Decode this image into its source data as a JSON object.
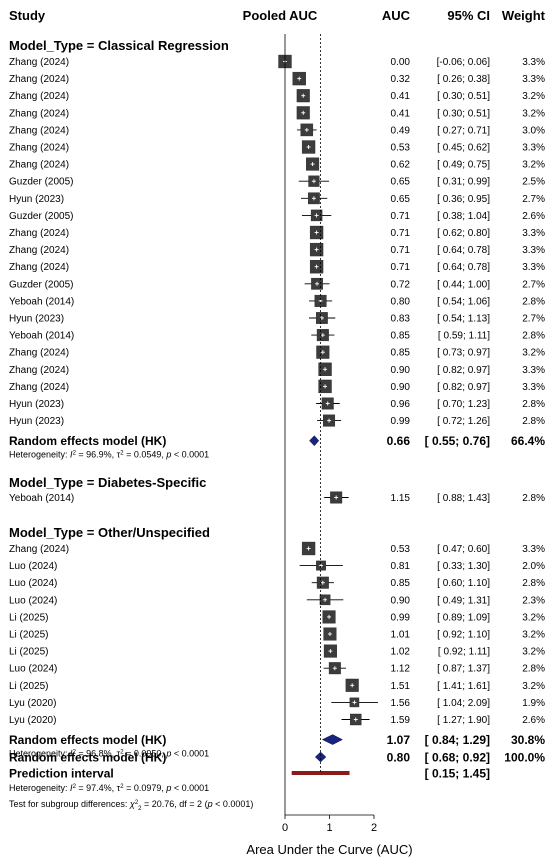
{
  "header": {
    "study": "Study",
    "plot": "Pooled AUC",
    "auc": "AUC",
    "ci": "95% CI",
    "weight": "Weight"
  },
  "chart_data": {
    "type": "forest",
    "xlabel": "Area Under the Curve (AUC)",
    "xlim": [
      0,
      2
    ],
    "xticks": [
      "0",
      "1",
      "2"
    ],
    "reference_line": 0.8,
    "colors": {
      "box": "#3c3c3c",
      "diamond": "#1a237e",
      "prediction": "#8b1a1a"
    },
    "groups": [
      {
        "title": "Model_Type = Classical Regression",
        "studies": [
          {
            "study": "Zhang (2024)",
            "auc": 0.0,
            "lo": -0.06,
            "hi": 0.06,
            "auc_text": "0.00",
            "ci_text": "[-0.06; 0.06]",
            "weight_text": "3.3%",
            "weight": 3.3
          },
          {
            "study": "Zhang (2024)",
            "auc": 0.32,
            "lo": 0.26,
            "hi": 0.38,
            "auc_text": "0.32",
            "ci_text": "[ 0.26; 0.38]",
            "weight_text": "3.3%",
            "weight": 3.3
          },
          {
            "study": "Zhang (2024)",
            "auc": 0.41,
            "lo": 0.3,
            "hi": 0.51,
            "auc_text": "0.41",
            "ci_text": "[ 0.30; 0.51]",
            "weight_text": "3.2%",
            "weight": 3.2
          },
          {
            "study": "Zhang (2024)",
            "auc": 0.41,
            "lo": 0.3,
            "hi": 0.51,
            "auc_text": "0.41",
            "ci_text": "[ 0.30; 0.51]",
            "weight_text": "3.2%",
            "weight": 3.2
          },
          {
            "study": "Zhang (2024)",
            "auc": 0.49,
            "lo": 0.27,
            "hi": 0.71,
            "auc_text": "0.49",
            "ci_text": "[ 0.27; 0.71]",
            "weight_text": "3.0%",
            "weight": 3.0
          },
          {
            "study": "Zhang (2024)",
            "auc": 0.53,
            "lo": 0.45,
            "hi": 0.62,
            "auc_text": "0.53",
            "ci_text": "[ 0.45; 0.62]",
            "weight_text": "3.3%",
            "weight": 3.3
          },
          {
            "study": "Zhang (2024)",
            "auc": 0.62,
            "lo": 0.49,
            "hi": 0.75,
            "auc_text": "0.62",
            "ci_text": "[ 0.49; 0.75]",
            "weight_text": "3.2%",
            "weight": 3.2
          },
          {
            "study": "Guzder (2005)",
            "auc": 0.65,
            "lo": 0.31,
            "hi": 0.99,
            "auc_text": "0.65",
            "ci_text": "[ 0.31; 0.99]",
            "weight_text": "2.5%",
            "weight": 2.5
          },
          {
            "study": "Hyun (2023)",
            "auc": 0.65,
            "lo": 0.36,
            "hi": 0.95,
            "auc_text": "0.65",
            "ci_text": "[ 0.36; 0.95]",
            "weight_text": "2.7%",
            "weight": 2.7
          },
          {
            "study": "Guzder (2005)",
            "auc": 0.71,
            "lo": 0.38,
            "hi": 1.04,
            "auc_text": "0.71",
            "ci_text": "[ 0.38; 1.04]",
            "weight_text": "2.6%",
            "weight": 2.6
          },
          {
            "study": "Zhang (2024)",
            "auc": 0.71,
            "lo": 0.62,
            "hi": 0.8,
            "auc_text": "0.71",
            "ci_text": "[ 0.62; 0.80]",
            "weight_text": "3.3%",
            "weight": 3.3
          },
          {
            "study": "Zhang (2024)",
            "auc": 0.71,
            "lo": 0.64,
            "hi": 0.78,
            "auc_text": "0.71",
            "ci_text": "[ 0.64; 0.78]",
            "weight_text": "3.3%",
            "weight": 3.3
          },
          {
            "study": "Zhang (2024)",
            "auc": 0.71,
            "lo": 0.64,
            "hi": 0.78,
            "auc_text": "0.71",
            "ci_text": "[ 0.64; 0.78]",
            "weight_text": "3.3%",
            "weight": 3.3
          },
          {
            "study": "Guzder (2005)",
            "auc": 0.72,
            "lo": 0.44,
            "hi": 1.0,
            "auc_text": "0.72",
            "ci_text": "[ 0.44; 1.00]",
            "weight_text": "2.7%",
            "weight": 2.7
          },
          {
            "study": "Yeboah (2014)",
            "auc": 0.8,
            "lo": 0.54,
            "hi": 1.06,
            "auc_text": "0.80",
            "ci_text": "[ 0.54; 1.06]",
            "weight_text": "2.8%",
            "weight": 2.8
          },
          {
            "study": "Hyun (2023)",
            "auc": 0.83,
            "lo": 0.54,
            "hi": 1.13,
            "auc_text": "0.83",
            "ci_text": "[ 0.54; 1.13]",
            "weight_text": "2.7%",
            "weight": 2.7
          },
          {
            "study": "Yeboah (2014)",
            "auc": 0.85,
            "lo": 0.59,
            "hi": 1.11,
            "auc_text": "0.85",
            "ci_text": "[ 0.59; 1.11]",
            "weight_text": "2.8%",
            "weight": 2.8
          },
          {
            "study": "Zhang (2024)",
            "auc": 0.85,
            "lo": 0.73,
            "hi": 0.97,
            "auc_text": "0.85",
            "ci_text": "[ 0.73; 0.97]",
            "weight_text": "3.2%",
            "weight": 3.2
          },
          {
            "study": "Zhang (2024)",
            "auc": 0.9,
            "lo": 0.82,
            "hi": 0.97,
            "auc_text": "0.90",
            "ci_text": "[ 0.82; 0.97]",
            "weight_text": "3.3%",
            "weight": 3.3
          },
          {
            "study": "Zhang (2024)",
            "auc": 0.9,
            "lo": 0.82,
            "hi": 0.97,
            "auc_text": "0.90",
            "ci_text": "[ 0.82; 0.97]",
            "weight_text": "3.3%",
            "weight": 3.3
          },
          {
            "study": "Hyun (2023)",
            "auc": 0.96,
            "lo": 0.7,
            "hi": 1.23,
            "auc_text": "0.96",
            "ci_text": "[ 0.70; 1.23]",
            "weight_text": "2.8%",
            "weight": 2.8
          },
          {
            "study": "Hyun (2023)",
            "auc": 0.99,
            "lo": 0.72,
            "hi": 1.26,
            "auc_text": "0.99",
            "ci_text": "[ 0.72; 1.26]",
            "weight_text": "2.8%",
            "weight": 2.8
          }
        ],
        "pooled": {
          "label": "Random effects model (HK)",
          "auc": 0.66,
          "lo": 0.55,
          "hi": 0.76,
          "auc_text": "0.66",
          "ci_text": "[ 0.55; 0.76]",
          "weight_text": "66.4%"
        },
        "heterogeneity": {
          "prefix": "Heterogeneity: ",
          "i2_sym": "I",
          "i2_sup": "2",
          "i2_val": " = 96.9%, τ",
          "tau_sup": "2",
          "tau_val": " = 0.0549, ",
          "p_sym": "p",
          "p_val": " < 0.0001"
        }
      },
      {
        "title": "Model_Type = Diabetes-Specific",
        "studies": [
          {
            "study": "Yeboah (2014)",
            "auc": 1.15,
            "lo": 0.88,
            "hi": 1.43,
            "auc_text": "1.15",
            "ci_text": "[ 0.88; 1.43]",
            "weight_text": "2.8%",
            "weight": 2.8
          }
        ]
      },
      {
        "title": "Model_Type = Other/Unspecified",
        "studies": [
          {
            "study": "Zhang (2024)",
            "auc": 0.53,
            "lo": 0.47,
            "hi": 0.6,
            "auc_text": "0.53",
            "ci_text": "[ 0.47; 0.60]",
            "weight_text": "3.3%",
            "weight": 3.3
          },
          {
            "study": "Luo (2024)",
            "auc": 0.81,
            "lo": 0.33,
            "hi": 1.3,
            "auc_text": "0.81",
            "ci_text": "[ 0.33; 1.30]",
            "weight_text": "2.0%",
            "weight": 2.0
          },
          {
            "study": "Luo (2024)",
            "auc": 0.85,
            "lo": 0.6,
            "hi": 1.1,
            "auc_text": "0.85",
            "ci_text": "[ 0.60; 1.10]",
            "weight_text": "2.8%",
            "weight": 2.8
          },
          {
            "study": "Luo (2024)",
            "auc": 0.9,
            "lo": 0.49,
            "hi": 1.31,
            "auc_text": "0.90",
            "ci_text": "[ 0.49; 1.31]",
            "weight_text": "2.3%",
            "weight": 2.3
          },
          {
            "study": "Li (2025)",
            "auc": 0.99,
            "lo": 0.89,
            "hi": 1.09,
            "auc_text": "0.99",
            "ci_text": "[ 0.89; 1.09]",
            "weight_text": "3.2%",
            "weight": 3.2
          },
          {
            "study": "Li (2025)",
            "auc": 1.01,
            "lo": 0.92,
            "hi": 1.1,
            "auc_text": "1.01",
            "ci_text": "[ 0.92; 1.10]",
            "weight_text": "3.2%",
            "weight": 3.2
          },
          {
            "study": "Li (2025)",
            "auc": 1.02,
            "lo": 0.92,
            "hi": 1.11,
            "auc_text": "1.02",
            "ci_text": "[ 0.92; 1.11]",
            "weight_text": "3.2%",
            "weight": 3.2
          },
          {
            "study": "Luo (2024)",
            "auc": 1.12,
            "lo": 0.87,
            "hi": 1.37,
            "auc_text": "1.12",
            "ci_text": "[ 0.87; 1.37]",
            "weight_text": "2.8%",
            "weight": 2.8
          },
          {
            "study": "Li (2025)",
            "auc": 1.51,
            "lo": 1.41,
            "hi": 1.61,
            "auc_text": "1.51",
            "ci_text": "[ 1.41; 1.61]",
            "weight_text": "3.2%",
            "weight": 3.2
          },
          {
            "study": "Lyu (2020)",
            "auc": 1.56,
            "lo": 1.04,
            "hi": 2.09,
            "auc_text": "1.56",
            "ci_text": "[ 1.04; 2.09]",
            "weight_text": "1.9%",
            "weight": 1.9
          },
          {
            "study": "Lyu (2020)",
            "auc": 1.59,
            "lo": 1.27,
            "hi": 1.9,
            "auc_text": "1.59",
            "ci_text": "[ 1.27; 1.90]",
            "weight_text": "2.6%",
            "weight": 2.6
          }
        ],
        "pooled": {
          "label": "Random effects model (HK)",
          "auc": 1.07,
          "lo": 0.84,
          "hi": 1.29,
          "auc_text": "1.07",
          "ci_text": "[ 0.84; 1.29]",
          "weight_text": "30.8%"
        },
        "heterogeneity": {
          "prefix": "Heterogeneity: ",
          "i2_sym": "I",
          "i2_sup": "2",
          "i2_val": " = 96.8%, τ",
          "tau_sup": "2",
          "tau_val": " = 0.0950, ",
          "p_sym": "p",
          "p_val": " < 0.0001"
        }
      }
    ],
    "overall": {
      "pooled": {
        "label": "Random effects model (HK)",
        "auc": 0.8,
        "lo": 0.68,
        "hi": 0.92,
        "auc_text": "0.80",
        "ci_text": "[ 0.68; 0.92]",
        "weight_text": "100.0%"
      },
      "prediction": {
        "label": "Prediction interval",
        "lo": 0.15,
        "hi": 1.45,
        "ci_text": "[ 0.15; 1.45]"
      },
      "heterogeneity": {
        "prefix": "Heterogeneity: ",
        "i2_sym": "I",
        "i2_sup": "2",
        "i2_val": " = 97.4%, τ",
        "tau_sup": "2",
        "tau_val": " = 0.0979, ",
        "p_sym": "p",
        "p_val": " < 0.0001"
      },
      "subgroup_test": {
        "prefix": "Test for subgroup differences: ",
        "chi_sym": "χ",
        "chi_sup": "2",
        "chi_sub": "2",
        "chi_val": " = 20.76, df = 2 (",
        "p_sym": "p",
        "p_val": " < 0.0001)"
      }
    }
  }
}
